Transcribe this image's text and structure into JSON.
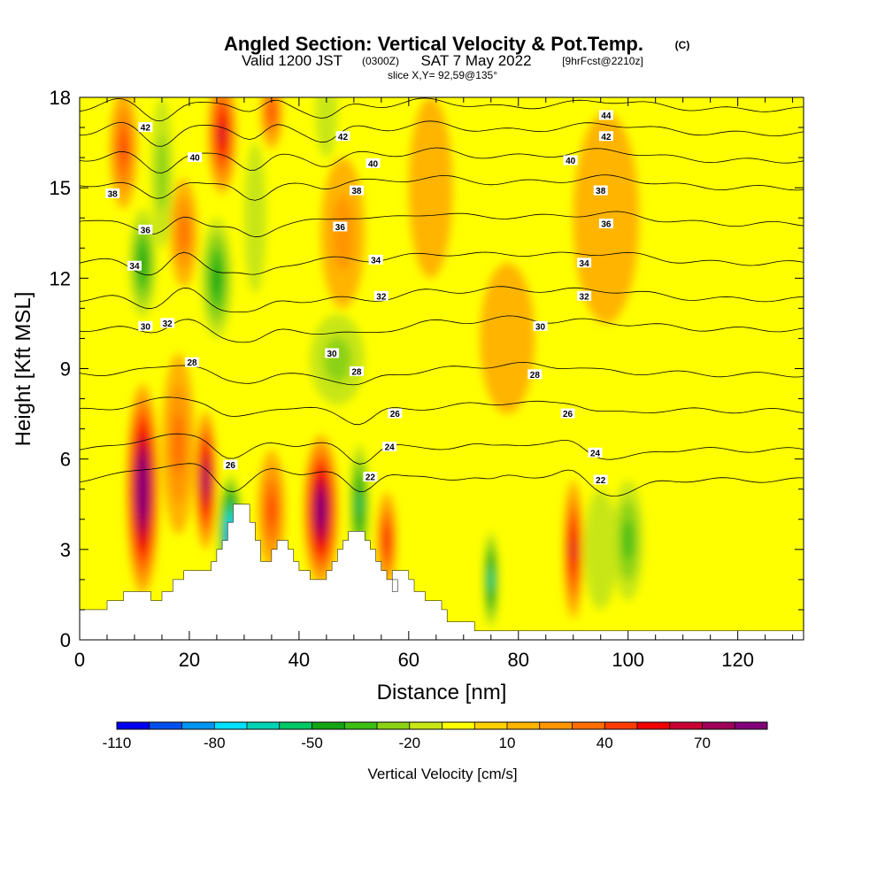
{
  "header": {
    "title_main": "Angled Section: Vertical Velocity & Pot.Temp.",
    "title_mark": "(C)",
    "valid_prefix": "Valid 1200 JST",
    "valid_utc": "(0300Z)",
    "valid_date": "SAT 7 May 2022",
    "forecast": "[9hrFcst@2210z]",
    "slice": "slice X,Y= 92,59@135°"
  },
  "chart_data": {
    "type": "heatmap",
    "title": "Angled Section: Vertical Velocity & Pot.Temp.",
    "xlabel": "Distance [nm]",
    "ylabel": "Height [Kft MSL]",
    "xlim": [
      0,
      132
    ],
    "ylim": [
      0,
      18
    ],
    "x_ticks": [
      "0",
      "20",
      "40",
      "60",
      "80",
      "100",
      "120"
    ],
    "x_tick_values": [
      0,
      20,
      40,
      60,
      80,
      100,
      120
    ],
    "y_ticks": [
      "0",
      "3",
      "6",
      "9",
      "12",
      "15",
      "18"
    ],
    "y_tick_values": [
      0,
      3,
      6,
      9,
      12,
      15,
      18
    ],
    "colorbar": {
      "label": "Vertical Velocity [cm/s]",
      "levels": [
        -110,
        -100,
        -90,
        -80,
        -70,
        -60,
        -50,
        -40,
        -30,
        -20,
        -10,
        0,
        10,
        20,
        30,
        40,
        50,
        60,
        70,
        80,
        90
      ],
      "tick_labels": [
        "-110",
        "-80",
        "-50",
        "-20",
        "10",
        "40",
        "70"
      ],
      "tick_values": [
        -110,
        -80,
        -50,
        -20,
        10,
        40,
        70
      ],
      "colors": [
        "#0000f0",
        "#0050f0",
        "#0096f0",
        "#00e0ff",
        "#00d4b4",
        "#00c864",
        "#14a514",
        "#3cbe14",
        "#8cd214",
        "#c8e614",
        "#ffff00",
        "#ffd200",
        "#ffb400",
        "#ff9600",
        "#ff6e00",
        "#ff3c00",
        "#f00000",
        "#c80032",
        "#a0005a",
        "#820078"
      ]
    },
    "terrain_kft": [
      [
        0,
        1.0
      ],
      [
        5,
        1.0
      ],
      [
        5,
        1.3
      ],
      [
        8,
        1.3
      ],
      [
        8,
        1.6
      ],
      [
        13,
        1.6
      ],
      [
        13,
        1.3
      ],
      [
        15,
        1.3
      ],
      [
        15,
        1.6
      ],
      [
        17,
        1.6
      ],
      [
        17,
        2.0
      ],
      [
        19,
        2.0
      ],
      [
        19,
        2.3
      ],
      [
        24,
        2.3
      ],
      [
        24,
        2.6
      ],
      [
        25,
        2.6
      ],
      [
        25,
        3.0
      ],
      [
        26,
        3.0
      ],
      [
        26,
        3.3
      ],
      [
        27,
        3.3
      ],
      [
        27,
        3.9
      ],
      [
        28,
        3.9
      ],
      [
        28,
        4.5
      ],
      [
        31,
        4.5
      ],
      [
        31,
        3.9
      ],
      [
        32,
        3.9
      ],
      [
        32,
        3.3
      ],
      [
        33,
        3.3
      ],
      [
        33,
        2.6
      ],
      [
        35,
        2.6
      ],
      [
        35,
        3.0
      ],
      [
        36,
        3.0
      ],
      [
        36,
        3.3
      ],
      [
        38,
        3.3
      ],
      [
        38,
        3.0
      ],
      [
        39,
        3.0
      ],
      [
        39,
        2.6
      ],
      [
        40,
        2.6
      ],
      [
        40,
        2.3
      ],
      [
        42,
        2.3
      ],
      [
        42,
        2.0
      ],
      [
        45,
        2.0
      ],
      [
        45,
        2.3
      ],
      [
        46,
        2.3
      ],
      [
        46,
        2.6
      ],
      [
        47,
        2.6
      ],
      [
        47,
        3.0
      ],
      [
        48,
        3.0
      ],
      [
        48,
        3.3
      ],
      [
        49,
        3.3
      ],
      [
        49,
        3.6
      ],
      [
        52,
        3.6
      ],
      [
        52,
        3.3
      ],
      [
        53,
        3.3
      ],
      [
        53,
        3.0
      ],
      [
        54,
        3.0
      ],
      [
        54,
        2.6
      ],
      [
        55,
        2.6
      ],
      [
        55,
        2.3
      ],
      [
        56,
        2.3
      ],
      [
        56,
        2.0
      ],
      [
        58,
        2.0
      ],
      [
        58,
        1.6
      ],
      [
        57,
        1.6
      ],
      [
        57,
        2.3
      ],
      [
        60,
        2.3
      ],
      [
        60,
        2.0
      ],
      [
        61,
        2.0
      ],
      [
        61,
        1.6
      ],
      [
        63,
        1.6
      ],
      [
        63,
        1.3
      ],
      [
        66,
        1.3
      ],
      [
        66,
        1.0
      ],
      [
        67,
        1.0
      ],
      [
        67,
        0.6
      ],
      [
        72,
        0.6
      ],
      [
        72,
        0.3
      ],
      [
        132,
        0.3
      ]
    ],
    "updrafts": [
      {
        "x": 11.5,
        "y": 5.0,
        "w": 100,
        "rx": 3.0,
        "ry": 3.5
      },
      {
        "x": 23.0,
        "y": 5.3,
        "w": 85,
        "rx": 2.0,
        "ry": 2.3
      },
      {
        "x": 26.0,
        "y": 16.8,
        "w": 60,
        "rx": 2.6,
        "ry": 2.0
      },
      {
        "x": 44.0,
        "y": 4.3,
        "w": 95,
        "rx": 3.2,
        "ry": 2.5
      },
      {
        "x": 56.0,
        "y": 3.3,
        "w": 55,
        "rx": 1.8,
        "ry": 1.6
      },
      {
        "x": 90.0,
        "y": 3.0,
        "w": 65,
        "rx": 1.8,
        "ry": 2.3
      },
      {
        "x": 8.0,
        "y": 16.3,
        "w": 40,
        "rx": 2.5,
        "ry": 2.0
      },
      {
        "x": 19.0,
        "y": 13.5,
        "w": 30,
        "rx": 2.5,
        "ry": 1.8
      },
      {
        "x": 35.0,
        "y": 17.5,
        "w": 45,
        "rx": 2.0,
        "ry": 1.2
      },
      {
        "x": 48.0,
        "y": 13.5,
        "w": 25,
        "rx": 4.0,
        "ry": 2.5
      },
      {
        "x": 35.0,
        "y": 4.3,
        "w": 40,
        "rx": 2.5,
        "ry": 2.0
      },
      {
        "x": 18.0,
        "y": 6.5,
        "w": 30,
        "rx": 3.0,
        "ry": 3.0
      },
      {
        "x": 96.0,
        "y": 14.0,
        "w": 18,
        "rx": 6.0,
        "ry": 3.5
      },
      {
        "x": 78.0,
        "y": 10.0,
        "w": 15,
        "rx": 5.0,
        "ry": 2.5
      },
      {
        "x": 64.0,
        "y": 15.0,
        "w": 15,
        "rx": 4.0,
        "ry": 3.0
      }
    ],
    "downdrafts": [
      {
        "x": 27.5,
        "y": 3.5,
        "w": -95,
        "rx": 2.2,
        "ry": 2.0
      },
      {
        "x": 11.5,
        "y": 12.5,
        "w": -40,
        "rx": 2.5,
        "ry": 1.8
      },
      {
        "x": 25.0,
        "y": 12.0,
        "w": -45,
        "rx": 2.8,
        "ry": 2.0
      },
      {
        "x": 15.0,
        "y": 15.5,
        "w": -25,
        "rx": 2.0,
        "ry": 2.5
      },
      {
        "x": 32.0,
        "y": 14.0,
        "w": -15,
        "rx": 2.0,
        "ry": 2.5
      },
      {
        "x": 47.0,
        "y": 9.3,
        "w": -25,
        "rx": 5.0,
        "ry": 1.5
      },
      {
        "x": 51.0,
        "y": 4.5,
        "w": -50,
        "rx": 1.8,
        "ry": 2.0
      },
      {
        "x": 75.0,
        "y": 2.0,
        "w": -65,
        "rx": 1.4,
        "ry": 1.6
      },
      {
        "x": 100.0,
        "y": 3.3,
        "w": -30,
        "rx": 2.8,
        "ry": 2.0
      },
      {
        "x": 45.0,
        "y": 17.5,
        "w": -15,
        "rx": 2.0,
        "ry": 1.5
      },
      {
        "x": 95.0,
        "y": 3.0,
        "w": -10,
        "rx": 3.0,
        "ry": 2.0
      }
    ],
    "isentropes": [
      {
        "label": "22",
        "base_kft": 5.3
      },
      {
        "label": "24",
        "base_kft": 6.3
      },
      {
        "label": "26",
        "base_kft": 7.6
      },
      {
        "label": "28",
        "base_kft": 8.8
      },
      {
        "label": "30",
        "base_kft": 10.3
      },
      {
        "label": "32",
        "base_kft": 11.3
      },
      {
        "label": "34",
        "base_kft": 12.5
      },
      {
        "label": "36",
        "base_kft": 13.8
      },
      {
        "label": "38",
        "base_kft": 15.0
      },
      {
        "label": "40",
        "base_kft": 15.9
      },
      {
        "label": "42",
        "base_kft": 16.8
      },
      {
        "label": "44",
        "base_kft": 17.6
      }
    ],
    "contour_labels": [
      {
        "text": "42",
        "x": 12,
        "y": 17.0
      },
      {
        "text": "40",
        "x": 21,
        "y": 16.0
      },
      {
        "text": "38",
        "x": 6,
        "y": 14.8
      },
      {
        "text": "36",
        "x": 12,
        "y": 13.6
      },
      {
        "text": "34",
        "x": 10,
        "y": 12.4
      },
      {
        "text": "32",
        "x": 16,
        "y": 10.5
      },
      {
        "text": "30",
        "x": 12,
        "y": 10.4
      },
      {
        "text": "28",
        "x": 20.5,
        "y": 9.2
      },
      {
        "text": "26",
        "x": 27.5,
        "y": 5.8
      },
      {
        "text": "42",
        "x": 48,
        "y": 16.7
      },
      {
        "text": "40",
        "x": 53.5,
        "y": 15.8
      },
      {
        "text": "38",
        "x": 50.5,
        "y": 14.9
      },
      {
        "text": "36",
        "x": 47.5,
        "y": 13.7
      },
      {
        "text": "34",
        "x": 54,
        "y": 12.6
      },
      {
        "text": "32",
        "x": 55,
        "y": 11.4
      },
      {
        "text": "30",
        "x": 46,
        "y": 9.5
      },
      {
        "text": "28",
        "x": 50.5,
        "y": 8.9
      },
      {
        "text": "26",
        "x": 57.5,
        "y": 7.5
      },
      {
        "text": "24",
        "x": 56.5,
        "y": 6.4
      },
      {
        "text": "22",
        "x": 53,
        "y": 5.4
      },
      {
        "text": "44",
        "x": 96,
        "y": 17.4
      },
      {
        "text": "42",
        "x": 96,
        "y": 16.7
      },
      {
        "text": "40",
        "x": 89.5,
        "y": 15.9
      },
      {
        "text": "38",
        "x": 95,
        "y": 14.9
      },
      {
        "text": "36",
        "x": 96,
        "y": 13.8
      },
      {
        "text": "34",
        "x": 92,
        "y": 12.5
      },
      {
        "text": "32",
        "x": 92,
        "y": 11.4
      },
      {
        "text": "30",
        "x": 84,
        "y": 10.4
      },
      {
        "text": "28",
        "x": 83,
        "y": 8.8
      },
      {
        "text": "26",
        "x": 89,
        "y": 7.5
      },
      {
        "text": "24",
        "x": 94,
        "y": 6.2
      },
      {
        "text": "22",
        "x": 95,
        "y": 5.3
      }
    ]
  }
}
